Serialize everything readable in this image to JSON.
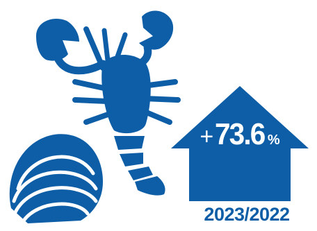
{
  "theme": {
    "brand_color": "#0d5ea7",
    "text_on_brand": "#ffffff"
  },
  "icons": [
    "lobster-icon",
    "clam-icon",
    "arrow-up-icon"
  ],
  "change": {
    "sign": "+",
    "value": "73.6",
    "unit": "%"
  },
  "period": "2023/2022"
}
